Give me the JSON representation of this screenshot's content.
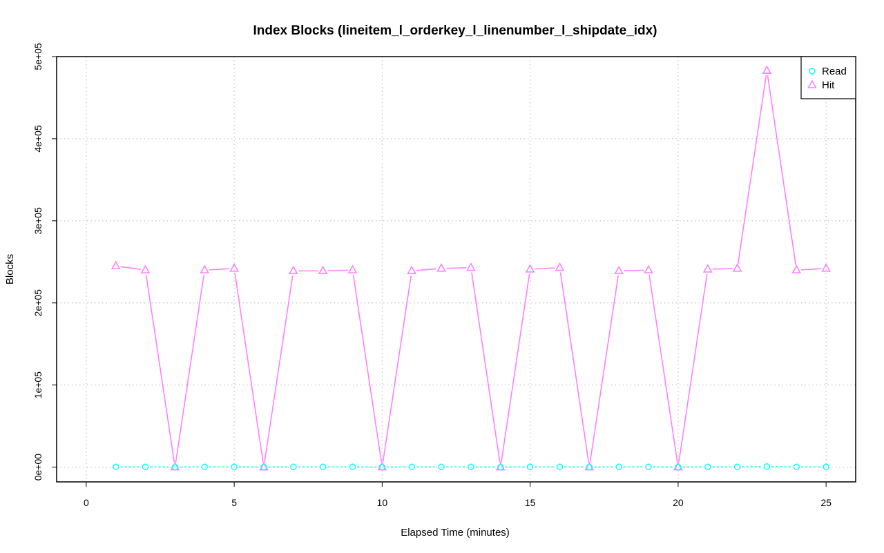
{
  "chart_data": {
    "type": "line",
    "title": "Index Blocks (lineitem_l_orderkey_l_linenumber_l_shipdate_idx)",
    "xlabel": "Elapsed Time (minutes)",
    "ylabel": "Blocks",
    "xlim": [
      -1,
      26
    ],
    "ylim": [
      -18000,
      500000
    ],
    "x_ticks": [
      0,
      5,
      10,
      15,
      20,
      25
    ],
    "x_tick_labels": [
      "0",
      "5",
      "10",
      "15",
      "20",
      "25"
    ],
    "y_ticks": [
      0,
      100000,
      200000,
      300000,
      400000,
      500000
    ],
    "y_tick_labels": [
      "0e+00",
      "1e+05",
      "2e+05",
      "3e+05",
      "4e+05",
      "5e+05"
    ],
    "grid": true,
    "legend_position": "top-right",
    "x": [
      1,
      2,
      3,
      4,
      5,
      6,
      7,
      8,
      9,
      10,
      11,
      12,
      13,
      14,
      15,
      16,
      17,
      18,
      19,
      20,
      21,
      22,
      23,
      24,
      25
    ],
    "series": [
      {
        "name": "Read",
        "color": "#00ffff",
        "marker": "circle",
        "line_style": "dashed",
        "values": [
          300,
          300,
          0,
          300,
          300,
          0,
          300,
          300,
          300,
          0,
          300,
          300,
          300,
          0,
          300,
          300,
          0,
          300,
          300,
          0,
          300,
          300,
          700,
          300,
          300
        ]
      },
      {
        "name": "Hit",
        "color": "#ff80ff",
        "marker": "triangle",
        "line_style": "solid",
        "values": [
          245000,
          240000,
          0,
          240000,
          242000,
          0,
          239000,
          239000,
          240000,
          0,
          239000,
          242000,
          243000,
          0,
          241000,
          243000,
          0,
          239000,
          240000,
          0,
          241000,
          242000,
          483000,
          240000,
          242000
        ]
      }
    ]
  }
}
